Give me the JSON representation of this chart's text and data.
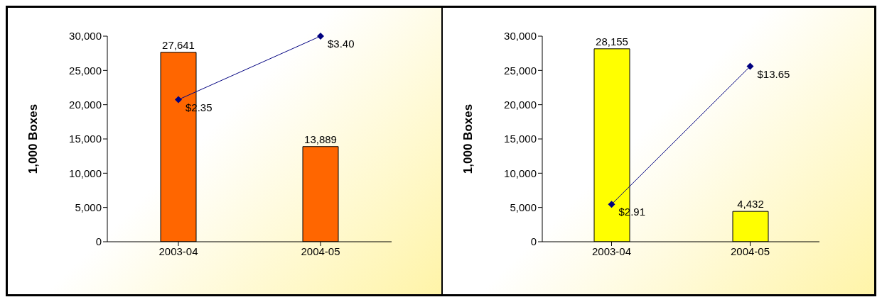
{
  "chart_data": [
    {
      "type": "bar",
      "categories": [
        "2003-04",
        "2004-05"
      ],
      "ylabel": "1,000 Boxes",
      "ylim": [
        0,
        30000
      ],
      "yticks": [
        0,
        {
          "value": 5000,
          "label": "5,000"
        },
        {
          "value": 10000,
          "label": "10,000"
        },
        {
          "value": 15000,
          "label": "15,000"
        },
        {
          "value": 20000,
          "label": "20,000"
        },
        {
          "value": 25000,
          "label": "25,000"
        },
        {
          "value": 30000,
          "label": "30,000"
        }
      ],
      "grid": false,
      "legend": false,
      "marker": "diamond",
      "series": [
        {
          "color": "#ff6600",
          "values": [
            27641,
            13889
          ],
          "value_labels": [
            "27,641",
            "13,889"
          ]
        },
        {
          "type": "line",
          "axis": "y2",
          "color": "#000080",
          "values": [
            2.35,
            3.4
          ],
          "value_labels": [
            "$2.35",
            "$3.40"
          ]
        }
      ]
    },
    {
      "type": "bar",
      "categories": [
        "2003-04",
        "2004-05"
      ],
      "ylabel": "1,000 Boxes",
      "ylim": [
        0,
        30000
      ],
      "yticks": [
        0,
        {
          "value": 5000,
          "label": "5,000"
        },
        {
          "value": 10000,
          "label": "10,000"
        },
        {
          "value": 15000,
          "label": "15,000"
        },
        {
          "value": 20000,
          "label": "20,000"
        },
        {
          "value": 25000,
          "label": "25,000"
        },
        {
          "value": 30000,
          "label": "30,000"
        }
      ],
      "grid": false,
      "legend": false,
      "marker": "diamond",
      "series": [
        {
          "color": "#ffff00",
          "values": [
            28155,
            4432
          ],
          "value_labels": [
            "28,155",
            "4,432"
          ]
        },
        {
          "type": "line",
          "axis": "y2",
          "color": "#000080",
          "values": [
            2.91,
            13.65
          ],
          "value_labels": [
            "$2.91",
            "$13.65"
          ]
        }
      ]
    }
  ]
}
